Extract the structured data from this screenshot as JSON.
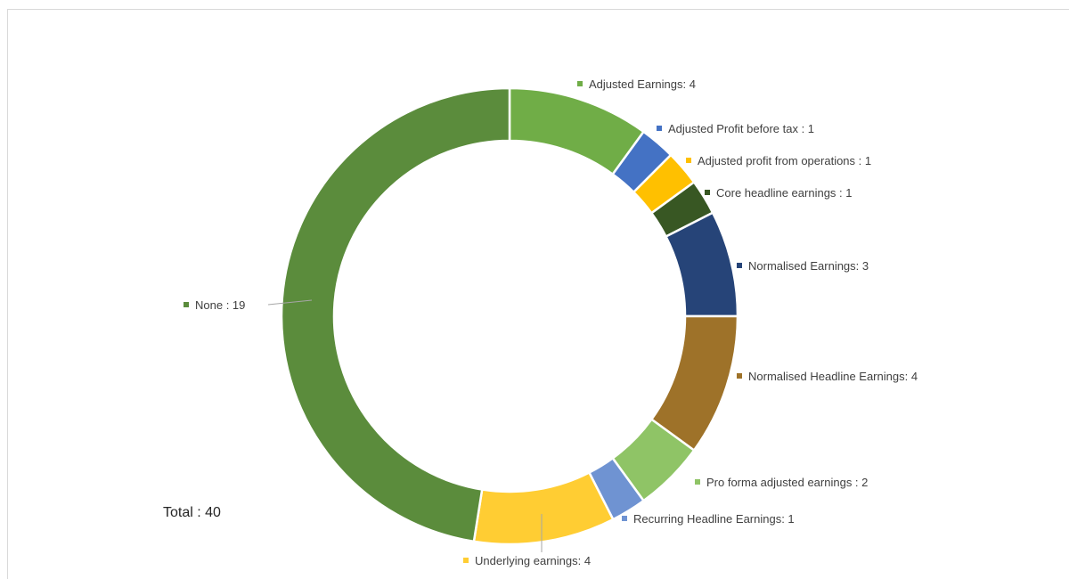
{
  "chart_data": {
    "type": "pie",
    "variant": "donut",
    "slices": [
      {
        "name": "Adjusted Earnings",
        "value": 4,
        "label": "Adjusted Earnings: 4",
        "color": "#70ad47"
      },
      {
        "name": "Adjusted Profit before tax",
        "value": 1,
        "label": "Adjusted Profit before tax : 1",
        "color": "#4472c4"
      },
      {
        "name": "Adjusted profit from operations",
        "value": 1,
        "label": "Adjusted profit from operations : 1",
        "color": "#ffc000"
      },
      {
        "name": "Core headline earnings",
        "value": 1,
        "label": "Core headline earnings : 1",
        "color": "#385723"
      },
      {
        "name": "Normalised Earnings",
        "value": 3,
        "label": "Normalised Earnings: 3",
        "color": "#264478"
      },
      {
        "name": "Normalised Headline Earnings",
        "value": 4,
        "label": "Normalised Headline Earnings: 4",
        "color": "#9e7229"
      },
      {
        "name": "Pro forma adjusted earnings",
        "value": 2,
        "label": "Pro forma adjusted earnings : 2",
        "color": "#8fc466"
      },
      {
        "name": "Recurring Headline Earnings",
        "value": 1,
        "label": "Recurring Headline Earnings: 1",
        "color": "#6f93d2"
      },
      {
        "name": "Underlying earnings",
        "value": 4,
        "label": "Underlying earnings: 4",
        "color": "#ffcd33"
      },
      {
        "name": "None",
        "value": 19,
        "label": "None : 19",
        "color": "#5b8c3c"
      }
    ],
    "total_label": "Total : 40",
    "legend": "none"
  }
}
